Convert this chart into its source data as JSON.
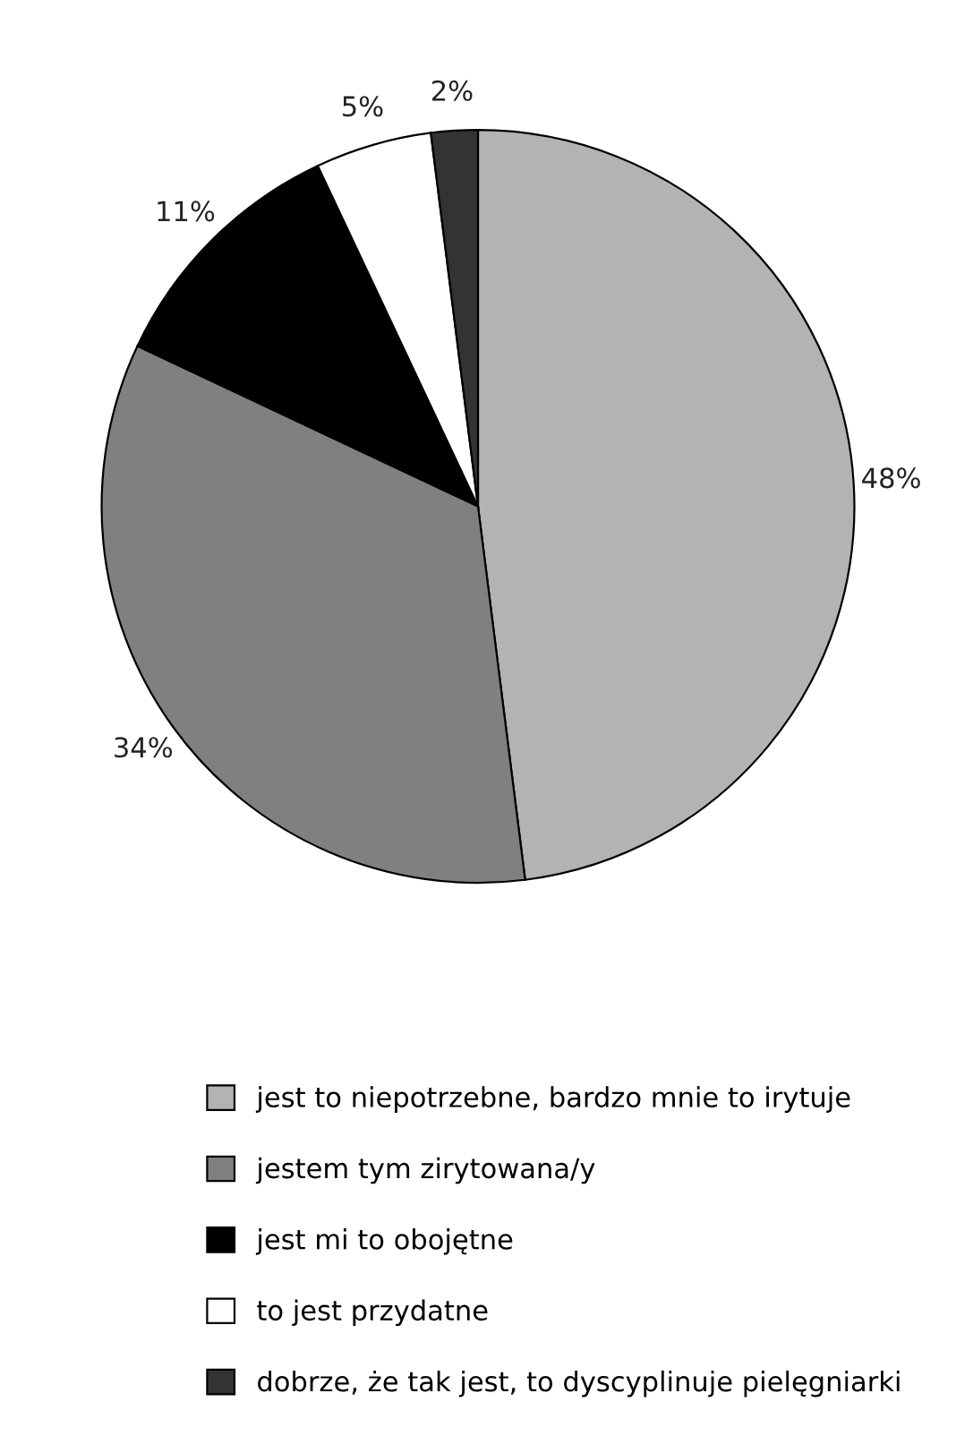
{
  "chart_data": {
    "type": "pie",
    "categories": [
      "jest to niepotrzebne, bardzo mnie to irytuje",
      "jestem tym zirytowana/y",
      "jest mi to obojętne",
      "to jest przydatne",
      "dobrze, że tak jest, to dyscyplinuje pielęgniarki"
    ],
    "values": [
      48,
      34,
      11,
      5,
      2
    ],
    "colors": [
      "#b3b3b3",
      "#808080",
      "#000000",
      "#ffffff",
      "#333333"
    ],
    "value_labels": [
      "48%",
      "34%",
      "11%",
      "5%",
      "2%"
    ],
    "legend": "bottom"
  }
}
